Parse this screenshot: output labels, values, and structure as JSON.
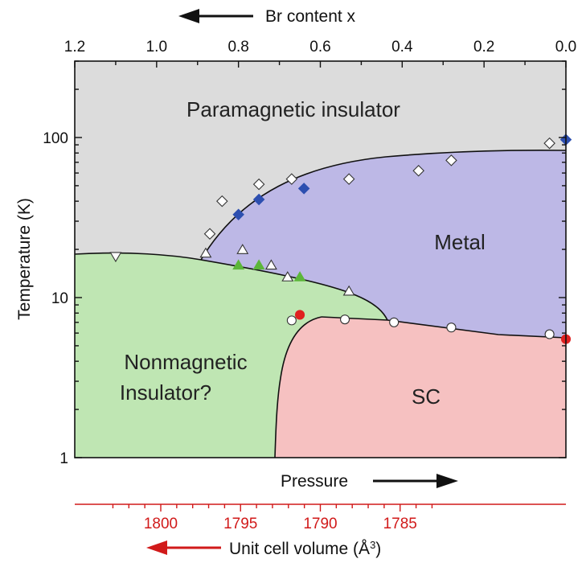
{
  "chart_data": {
    "type": "scatter",
    "title": "",
    "top_axis": {
      "label": "Br content x",
      "ticks": [
        "1.2",
        "1.0",
        "0.8",
        "0.6",
        "0.4",
        "0.2",
        "0.0"
      ],
      "direction": "decreasing to the right"
    },
    "xlabel": "Pressure",
    "ylabel": "Temperature (K)",
    "y_scale": "log",
    "ylim": [
      1,
      300
    ],
    "y_ticks": [
      "1",
      "10",
      "100"
    ],
    "xlim_br": [
      1.2,
      0.0
    ],
    "bottom_axis": {
      "label": "Unit cell volume (Å",
      "label_sup": "3",
      "label_end": ")",
      "ticks": [
        "1800",
        "1795",
        "1790",
        "1785"
      ],
      "color": "#d11a1a"
    },
    "regions": [
      {
        "name": "Paramagnetic insulator",
        "color": "#dcdcdc"
      },
      {
        "name": "Metal",
        "color": "#bdb8e6"
      },
      {
        "name": "Nonmagnetic Insulator?",
        "name_line1": "Nonmagnetic",
        "name_line2": "Insulator?",
        "color": "#bfe6b3"
      },
      {
        "name": "SC",
        "color": "#f6c1c1"
      }
    ],
    "series": [
      {
        "marker": "diamond-open",
        "points": [
          [
            0.87,
            25
          ],
          [
            0.84,
            40
          ],
          [
            0.75,
            51
          ],
          [
            0.67,
            55
          ],
          [
            0.53,
            55
          ],
          [
            0.36,
            62
          ],
          [
            0.28,
            72
          ],
          [
            0.04,
            92
          ]
        ]
      },
      {
        "marker": "diamond-filled",
        "color": "#2d4fb0",
        "points": [
          [
            0.8,
            33
          ],
          [
            0.75,
            41
          ],
          [
            0.64,
            48
          ],
          [
            0.0,
            97
          ]
        ]
      },
      {
        "marker": "triangle-down-open",
        "points": [
          [
            1.1,
            18
          ]
        ]
      },
      {
        "marker": "triangle-up-open",
        "points": [
          [
            0.88,
            19
          ],
          [
            0.79,
            20
          ],
          [
            0.72,
            16
          ],
          [
            0.68,
            13.5
          ],
          [
            0.53,
            11
          ]
        ]
      },
      {
        "marker": "triangle-up-filled",
        "color": "#5cb63a",
        "points": [
          [
            0.8,
            16
          ],
          [
            0.75,
            16
          ],
          [
            0.65,
            13.5
          ]
        ]
      },
      {
        "marker": "circle-open",
        "points": [
          [
            0.67,
            7.2
          ],
          [
            0.54,
            7.3
          ],
          [
            0.42,
            7.0
          ],
          [
            0.28,
            6.5
          ],
          [
            0.04,
            5.9
          ]
        ]
      },
      {
        "marker": "circle-filled",
        "color": "#e02020",
        "points": [
          [
            0.65,
            7.8
          ],
          [
            0.0,
            5.5
          ]
        ]
      }
    ]
  },
  "top_arrow": {
    "direction": "left"
  },
  "pressure_arrow": {
    "direction": "right"
  },
  "volume_arrow": {
    "direction": "left"
  }
}
